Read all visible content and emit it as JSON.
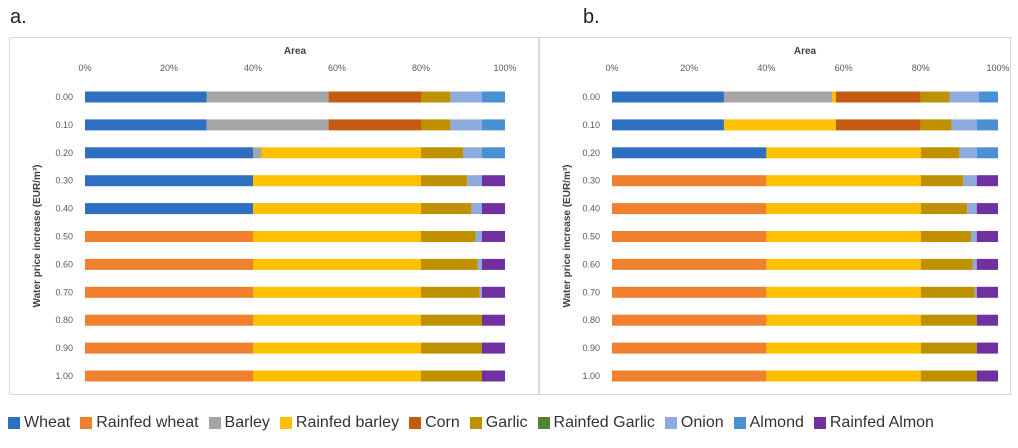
{
  "chart_data": [
    {
      "panel": "a.",
      "type": "bar",
      "orientation": "horizontal",
      "stacked": "percent",
      "title": "Area",
      "xlabel": "",
      "ylabel": "Water price increase (EUR/m³)",
      "xticks": [
        "0%",
        "20%",
        "40%",
        "60%",
        "80%",
        "100%"
      ],
      "xlim": [
        0,
        100
      ],
      "categories": [
        "0.00",
        "0.10",
        "0.20",
        "0.30",
        "0.40",
        "0.50",
        "0.60",
        "0.70",
        "0.80",
        "0.90",
        "1.00"
      ],
      "grid": false,
      "series": [
        {
          "name": "Wheat",
          "values": [
            29,
            29,
            40,
            40,
            40,
            0,
            0,
            0,
            0,
            0,
            0
          ]
        },
        {
          "name": "Rainfed wheat",
          "values": [
            0,
            0,
            0,
            0,
            0,
            40,
            40,
            40,
            40,
            40,
            40
          ]
        },
        {
          "name": "Barley",
          "values": [
            29,
            29,
            2,
            0,
            0,
            0,
            0,
            0,
            0,
            0,
            0
          ]
        },
        {
          "name": "Rainfed barley",
          "values": [
            0,
            0,
            38,
            40,
            40,
            40,
            40,
            40,
            40,
            40,
            40
          ]
        },
        {
          "name": "Corn",
          "values": [
            22,
            22,
            0,
            0,
            0,
            0,
            0,
            0,
            0,
            0,
            0
          ]
        },
        {
          "name": "Garlic",
          "values": [
            7,
            7,
            10,
            11,
            12,
            13,
            13.5,
            14,
            14.5,
            14.5,
            14.5
          ]
        },
        {
          "name": "Rainfed Garlic",
          "values": [
            0,
            0,
            0,
            0,
            0,
            0,
            0,
            0,
            0,
            0,
            0
          ]
        },
        {
          "name": "Onion",
          "values": [
            7.5,
            7.5,
            4.5,
            3.5,
            2.5,
            1.5,
            1,
            0.5,
            0,
            0,
            0
          ]
        },
        {
          "name": "Almond",
          "values": [
            5.5,
            5.5,
            5.5,
            0,
            0,
            0,
            0,
            0,
            0,
            0,
            0
          ]
        },
        {
          "name": "Rainfed Almond",
          "values": [
            0,
            0,
            0,
            5.5,
            5.5,
            5.5,
            5.5,
            5.5,
            5.5,
            5.5,
            5.5
          ]
        }
      ]
    },
    {
      "panel": "b.",
      "type": "bar",
      "orientation": "horizontal",
      "stacked": "percent",
      "title": "Area",
      "xlabel": "",
      "ylabel": "Water price increase (EUR/m³)",
      "xticks": [
        "0%",
        "20%",
        "40%",
        "60%",
        "80%",
        "100%"
      ],
      "xlim": [
        0,
        100
      ],
      "categories": [
        "0.00",
        "0.10",
        "0.20",
        "0.30",
        "0.40",
        "0.50",
        "0.60",
        "0.70",
        "0.80",
        "0.90",
        "1.00"
      ],
      "grid": false,
      "series": [
        {
          "name": "Wheat",
          "values": [
            29,
            29,
            40,
            0,
            0,
            0,
            0,
            0,
            0,
            0,
            0
          ]
        },
        {
          "name": "Rainfed wheat",
          "values": [
            0,
            0,
            0,
            40,
            40,
            40,
            40,
            40,
            40,
            40,
            40
          ]
        },
        {
          "name": "Barley",
          "values": [
            28,
            0,
            0,
            0,
            0,
            0,
            0,
            0,
            0,
            0,
            0
          ]
        },
        {
          "name": "Rainfed barley",
          "values": [
            1,
            29,
            40,
            40,
            40,
            40,
            40,
            40,
            40,
            40,
            40
          ]
        },
        {
          "name": "Corn",
          "values": [
            22,
            22,
            0,
            0,
            0,
            0,
            0,
            0,
            0,
            0,
            0
          ]
        },
        {
          "name": "Garlic",
          "values": [
            7.5,
            8,
            10,
            11,
            12,
            13,
            13.5,
            14,
            14.5,
            14.5,
            14.5
          ]
        },
        {
          "name": "Rainfed Garlic",
          "values": [
            0,
            0,
            0,
            0,
            0,
            0,
            0,
            0,
            0,
            0,
            0
          ]
        },
        {
          "name": "Onion",
          "values": [
            7.5,
            6.5,
            4.5,
            3.5,
            2.5,
            1.5,
            1,
            0.5,
            0,
            0,
            0
          ]
        },
        {
          "name": "Almond",
          "values": [
            5,
            5.5,
            5.5,
            0,
            0,
            0,
            0,
            0,
            0,
            0,
            0
          ]
        },
        {
          "name": "Rainfed Almond",
          "values": [
            0,
            0,
            0,
            5.5,
            5.5,
            5.5,
            5.5,
            5.5,
            5.5,
            5.5,
            5.5
          ]
        }
      ]
    }
  ],
  "legend": [
    {
      "name": "Wheat",
      "color": "#2e6fc1"
    },
    {
      "name": "Rainfed wheat",
      "color": "#f07f2e"
    },
    {
      "name": "Barley",
      "color": "#a5a5a5"
    },
    {
      "name": "Rainfed barley",
      "color": "#ffc000"
    },
    {
      "name": "Corn",
      "color": "#c55a11"
    },
    {
      "name": "Garlic",
      "color": "#bf9000"
    },
    {
      "name": "Rainfed Garlic",
      "color": "#548235"
    },
    {
      "name": "Onion",
      "color": "#8faadc"
    },
    {
      "name": "Almond",
      "color": "#4a90d4"
    },
    {
      "name": "Rainfed Almon",
      "color": "#7030a0"
    }
  ]
}
